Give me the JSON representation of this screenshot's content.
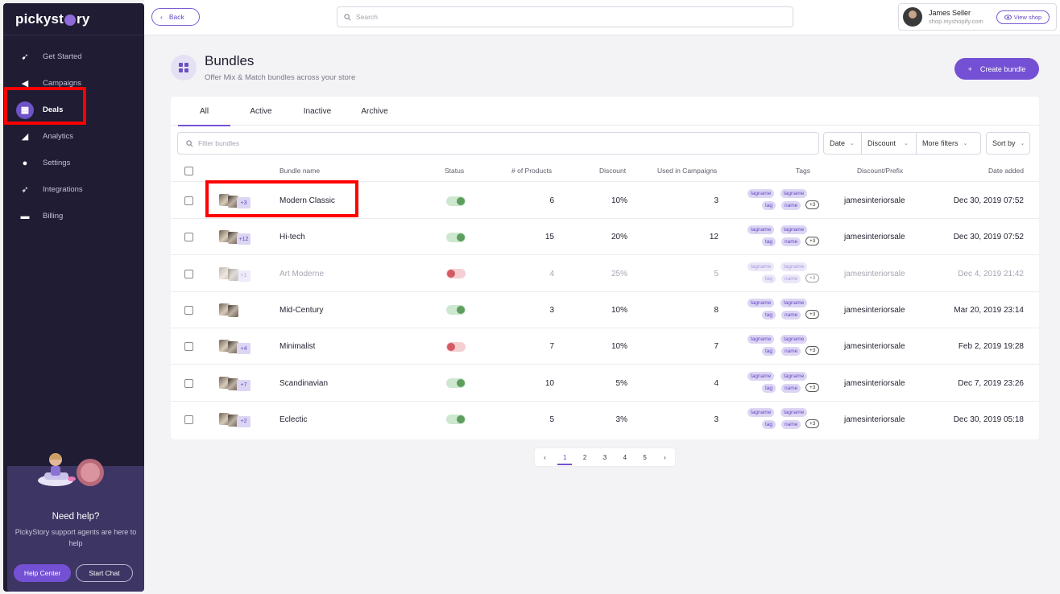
{
  "app": {
    "logo": "pickystory"
  },
  "sidebar": {
    "items": [
      {
        "label": "Get Started",
        "icon": "rocket-icon"
      },
      {
        "label": "Campaigns",
        "icon": "megaphone-icon"
      },
      {
        "label": "Deals",
        "icon": "grid-icon"
      },
      {
        "label": "Analytics",
        "icon": "chart-icon"
      },
      {
        "label": "Settings",
        "icon": "gear-icon"
      },
      {
        "label": "Integrations",
        "icon": "plug-icon"
      },
      {
        "label": "Billing",
        "icon": "card-icon"
      }
    ],
    "help": {
      "title": "Need help?",
      "subtitle": "PickyStory support agents are here to help",
      "help_center": "Help Center",
      "start_chat": "Start Chat"
    }
  },
  "topbar": {
    "back": "Back",
    "search_placeholder": "Search",
    "user_name": "James Seller",
    "user_shop": "shop.myshopify.com",
    "view_shop": "View shop"
  },
  "header": {
    "title": "Bundles",
    "subtitle": "Offer Mix & Match bundles across your store",
    "create_button": "Create bundle"
  },
  "tabs": [
    "All",
    "Active",
    "Inactive",
    "Archive"
  ],
  "filters": {
    "placeholder": "Filter bundles",
    "date": "Date",
    "discount": "Discount",
    "more": "More filters",
    "sort": "Sort by"
  },
  "columns": {
    "name": "Bundle name",
    "status": "Status",
    "products": "# of Products",
    "discount": "Discount",
    "campaigns": "Used in Campaigns",
    "tags": "Tags",
    "prefix": "Discount/Prefix",
    "date": "Date added"
  },
  "rows": [
    {
      "extra": "+3",
      "name": "Modern Classic",
      "status": "on",
      "products": "6",
      "discount": "10%",
      "campaigns": "3",
      "tags": [
        "tagname",
        "tagname",
        "tag",
        "name",
        "+3"
      ],
      "prefix": "jamesinteriorsale",
      "date": "Dec 30, 2019 07:52"
    },
    {
      "extra": "+12",
      "name": "Hi-tech",
      "status": "on",
      "products": "15",
      "discount": "20%",
      "campaigns": "12",
      "tags": [
        "tagname",
        "tagname",
        "tag",
        "name",
        "+3"
      ],
      "prefix": "jamesinteriorsale",
      "date": "Dec 30, 2019 07:52"
    },
    {
      "extra": "+1",
      "name": "Art Moderne",
      "status": "off",
      "dim": true,
      "products": "4",
      "discount": "25%",
      "campaigns": "5",
      "tags": [
        "tagname",
        "tagname",
        "tag",
        "name",
        "+3"
      ],
      "prefix": "jamesinteriorsale",
      "date": "Dec 4, 2019 21:42"
    },
    {
      "extra": "",
      "name": "Mid-Century",
      "status": "on",
      "products": "3",
      "discount": "10%",
      "campaigns": "8",
      "tags": [
        "tagname",
        "tagname",
        "tag",
        "name",
        "+3"
      ],
      "prefix": "jamesinteriorsale",
      "date": "Mar 20, 2019 23:14"
    },
    {
      "extra": "+4",
      "name": "Minimalist",
      "status": "off",
      "products": "7",
      "discount": "10%",
      "campaigns": "7",
      "tags": [
        "tagname",
        "tagname",
        "tag",
        "name",
        "+3"
      ],
      "prefix": "jamesinteriorsale",
      "date": "Feb 2, 2019 19:28"
    },
    {
      "extra": "+7",
      "name": "Scandinavian",
      "status": "on",
      "products": "10",
      "discount": "5%",
      "campaigns": "4",
      "tags": [
        "tagname",
        "tagname",
        "tag",
        "name",
        "+3"
      ],
      "prefix": "jamesinteriorsale",
      "date": "Dec 7, 2019 23:26"
    },
    {
      "extra": "+2",
      "name": "Eclectic",
      "status": "on",
      "products": "5",
      "discount": "3%",
      "campaigns": "3",
      "tags": [
        "tagname",
        "tagname",
        "tag",
        "name",
        "+3"
      ],
      "prefix": "jamesinteriorsale",
      "date": "Dec 30, 2019 05:18"
    }
  ],
  "pagination": {
    "prev": "‹",
    "pages": [
      "1",
      "2",
      "3",
      "4",
      "5"
    ],
    "next": "›",
    "active": "1"
  }
}
